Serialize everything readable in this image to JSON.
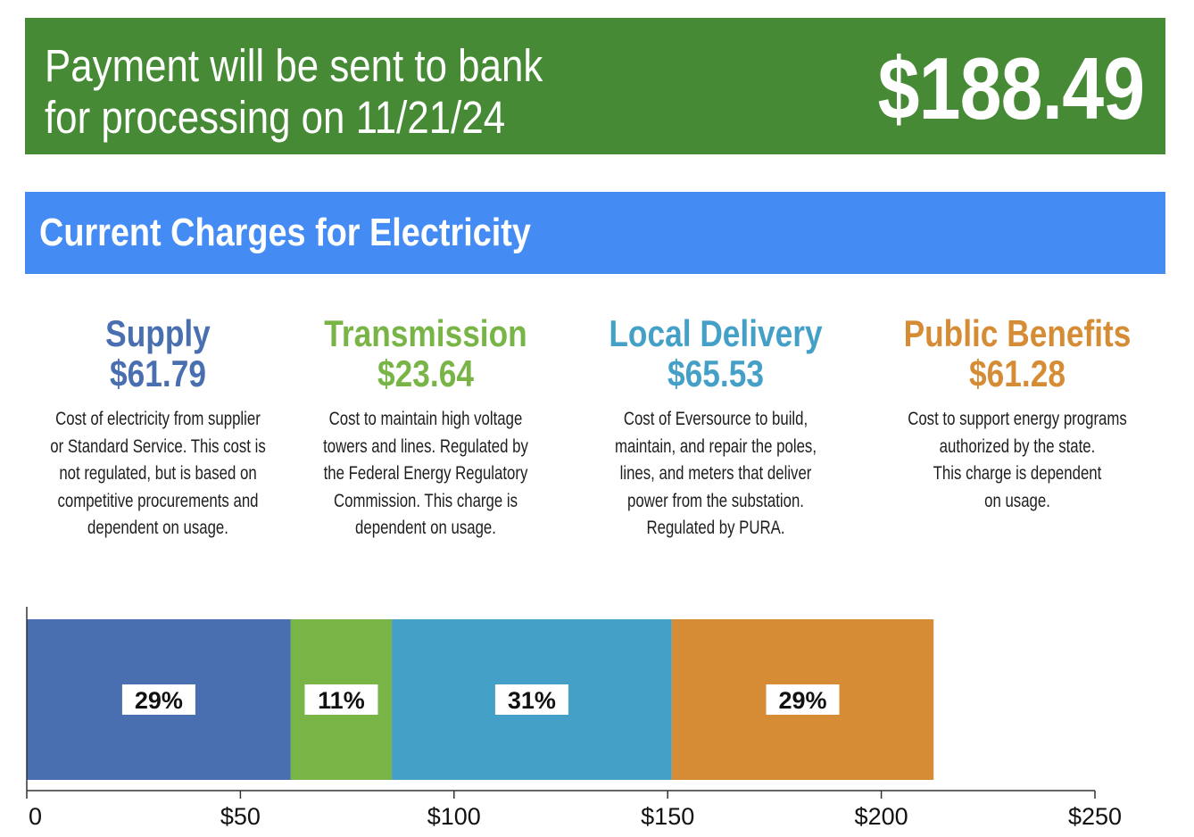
{
  "banner": {
    "message_line1": "Payment will be sent to bank",
    "message_line2": "for processing on 11/21/24",
    "amount": "$188.49",
    "background": "#468a35"
  },
  "section": {
    "title": "Current Charges for Electricity",
    "background": "#448cf4"
  },
  "categories": [
    {
      "name": "Supply",
      "amount": "$61.79",
      "color": "#4a6fb0",
      "description": "Cost of electricity from supplier\nor Standard Service. This cost is\nnot regulated, but is based on\ncompetitive procurements and\ndependent on usage."
    },
    {
      "name": "Transmission",
      "amount": "$23.64",
      "color": "#78b446",
      "description": "Cost to maintain high voltage\ntowers and lines. Regulated by\nthe Federal Energy Regulatory\nCommission. This charge is\ndependent on usage."
    },
    {
      "name": "Local Delivery",
      "amount": "$65.53",
      "color": "#45a0c8",
      "description": "Cost of Eversource to build,\nmaintain, and repair the poles,\nlines, and meters that deliver\npower from the substation.\nRegulated by PURA."
    },
    {
      "name": "Public Benefits",
      "amount": "$61.28",
      "color": "#d68b35",
      "description": "Cost to support energy programs\nauthorized by the state.\nThis charge is dependent\non usage."
    }
  ],
  "chart_data": {
    "type": "bar",
    "orientation": "horizontal",
    "stacked": true,
    "x_ticks": [
      "0",
      "$50",
      "$100",
      "$150",
      "$200",
      "$250"
    ],
    "xlim": [
      0,
      250
    ],
    "series": [
      {
        "name": "Supply",
        "value": 61.79,
        "label": "29%",
        "color": "#4a6fb0"
      },
      {
        "name": "Transmission",
        "value": 23.64,
        "label": "11%",
        "color": "#78b446"
      },
      {
        "name": "Local Delivery",
        "value": 65.53,
        "label": "31%",
        "color": "#45a0c8"
      },
      {
        "name": "Public Benefits",
        "value": 61.28,
        "label": "29%",
        "color": "#d68b35"
      }
    ],
    "grid": false,
    "legend": "none"
  }
}
